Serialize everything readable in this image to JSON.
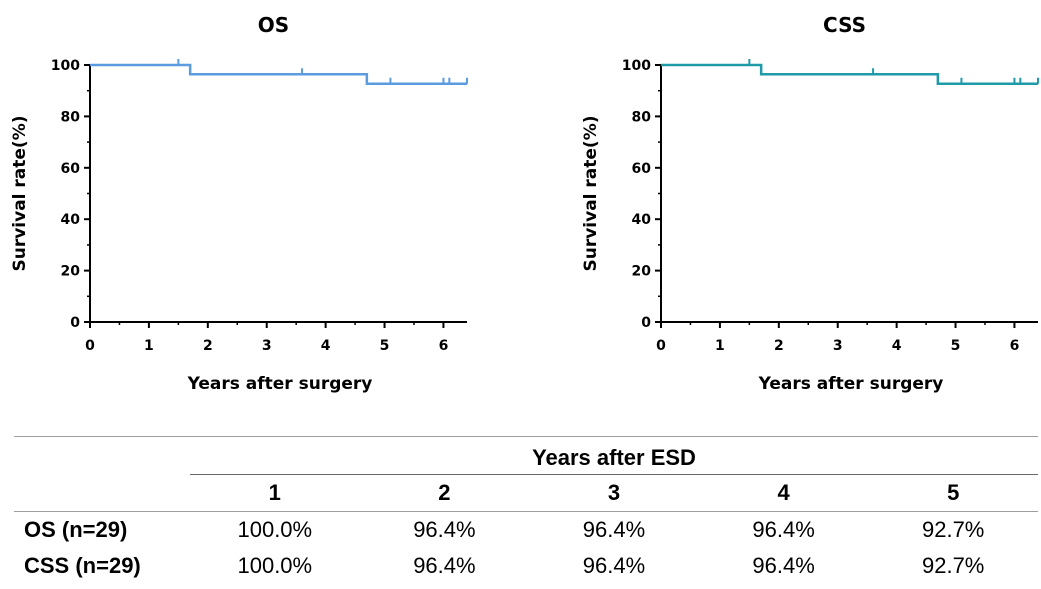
{
  "chart_data": [
    {
      "type": "line",
      "title": "OS",
      "xlabel": "Years after surgery",
      "ylabel": "Survival rate(%)",
      "xlim": [
        0,
        6.4
      ],
      "ylim": [
        0,
        100
      ],
      "xticks": [
        0,
        1,
        2,
        3,
        4,
        5,
        6
      ],
      "yticks": [
        0,
        20,
        40,
        60,
        80,
        100
      ],
      "grid": false,
      "color": "#5b9bdf",
      "steps": [
        {
          "x": 0,
          "y": 100
        },
        {
          "x": 1.7,
          "y": 96.4
        },
        {
          "x": 4.7,
          "y": 92.7
        },
        {
          "x": 6.4,
          "y": 92.7
        }
      ],
      "censored": [
        {
          "x": 1.5,
          "y": 100
        },
        {
          "x": 3.6,
          "y": 96.4
        },
        {
          "x": 5.1,
          "y": 92.7
        },
        {
          "x": 6.0,
          "y": 92.7
        },
        {
          "x": 6.1,
          "y": 92.7
        },
        {
          "x": 6.4,
          "y": 92.7
        }
      ]
    },
    {
      "type": "line",
      "title": "CSS",
      "xlabel": "Years after surgery",
      "ylabel": "Survival rate(%)",
      "xlim": [
        0,
        6.4
      ],
      "ylim": [
        0,
        100
      ],
      "xticks": [
        0,
        1,
        2,
        3,
        4,
        5,
        6
      ],
      "yticks": [
        0,
        20,
        40,
        60,
        80,
        100
      ],
      "grid": false,
      "color": "#1e9aa8",
      "steps": [
        {
          "x": 0,
          "y": 100
        },
        {
          "x": 1.7,
          "y": 96.4
        },
        {
          "x": 4.7,
          "y": 92.7
        },
        {
          "x": 6.4,
          "y": 92.7
        }
      ],
      "censored": [
        {
          "x": 1.5,
          "y": 100
        },
        {
          "x": 3.6,
          "y": 96.4
        },
        {
          "x": 5.1,
          "y": 92.7
        },
        {
          "x": 6.0,
          "y": 92.7
        },
        {
          "x": 6.1,
          "y": 92.7
        },
        {
          "x": 6.4,
          "y": 92.7
        }
      ]
    }
  ],
  "table": {
    "group_header": "Years after ESD",
    "columns": [
      "1",
      "2",
      "3",
      "4",
      "5"
    ],
    "rows": [
      {
        "label": "OS (n=29)",
        "values": [
          "100.0%",
          "96.4%",
          "96.4%",
          "96.4%",
          "92.7%"
        ]
      },
      {
        "label": "CSS (n=29)",
        "values": [
          "100.0%",
          "96.4%",
          "96.4%",
          "96.4%",
          "92.7%"
        ]
      }
    ]
  }
}
